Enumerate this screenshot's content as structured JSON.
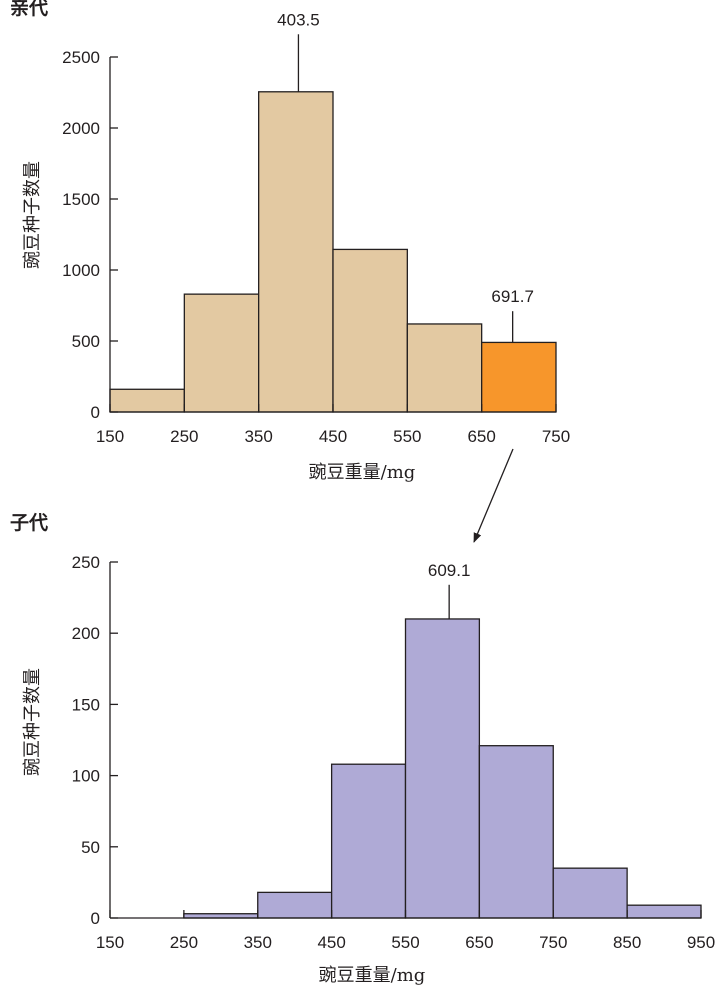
{
  "chart_data": [
    {
      "type": "bar",
      "panel_label": "亲代",
      "xlabel": "豌豆重量/mg",
      "ylabel": "豌豆种子数量",
      "x_ticks": [
        150,
        250,
        350,
        450,
        550,
        650,
        750
      ],
      "y_ticks": [
        0,
        500,
        1000,
        1500,
        2000,
        2500
      ],
      "xlim": [
        150,
        750
      ],
      "ylim": [
        0,
        2500
      ],
      "bins": [
        {
          "x0": 150,
          "x1": 250,
          "value": 160
        },
        {
          "x0": 250,
          "x1": 350,
          "value": 830
        },
        {
          "x0": 350,
          "x1": 450,
          "value": 2255
        },
        {
          "x0": 450,
          "x1": 550,
          "value": 1145
        },
        {
          "x0": 550,
          "x1": 650,
          "value": 620
        },
        {
          "x0": 650,
          "x1": 750,
          "value": 490,
          "highlight": true
        }
      ],
      "bar_color": "#e3c9a2",
      "highlight_color": "#f7962b",
      "annotations": [
        {
          "label": "403.5",
          "x": 403.5,
          "bar_top": 2255,
          "line_top": 2660
        },
        {
          "label": "691.7",
          "x": 691.7,
          "bar_top": 490,
          "line_top": 710
        }
      ]
    },
    {
      "type": "bar",
      "panel_label": "子代",
      "xlabel": "豌豆重量/mg",
      "ylabel": "豌豆种子数量",
      "x_ticks": [
        150,
        250,
        350,
        450,
        550,
        650,
        750,
        850,
        950
      ],
      "y_ticks": [
        0,
        50,
        100,
        150,
        200,
        250
      ],
      "xlim": [
        150,
        950
      ],
      "ylim": [
        0,
        250
      ],
      "bins": [
        {
          "x0": 150,
          "x1": 250,
          "value": 0
        },
        {
          "x0": 250,
          "x1": 350,
          "value": 3
        },
        {
          "x0": 350,
          "x1": 450,
          "value": 18
        },
        {
          "x0": 450,
          "x1": 550,
          "value": 108
        },
        {
          "x0": 550,
          "x1": 650,
          "value": 210
        },
        {
          "x0": 650,
          "x1": 750,
          "value": 121
        },
        {
          "x0": 750,
          "x1": 850,
          "value": 35
        },
        {
          "x0": 850,
          "x1": 950,
          "value": 9
        }
      ],
      "bar_color": "#afaad6",
      "annotations": [
        {
          "label": "609.1",
          "x": 609.1,
          "bar_top": 210,
          "line_top": 234
        }
      ]
    }
  ]
}
